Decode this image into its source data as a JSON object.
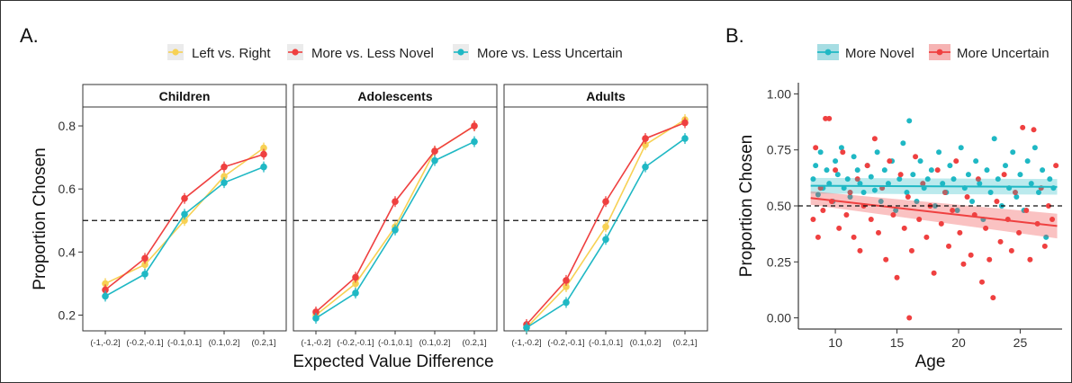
{
  "panel_a": {
    "label": "A.",
    "legend": [
      {
        "name": "Left vs. Right",
        "color": "#f7d154"
      },
      {
        "name": "More vs. Less Novel",
        "color": "#ef4040"
      },
      {
        "name": "More vs. Less Uncertain",
        "color": "#1fb8c4"
      }
    ]
  },
  "panel_b": {
    "label": "B.",
    "legend": [
      {
        "name": "More Novel",
        "color": "#1fb8c4"
      },
      {
        "name": "More Uncertain",
        "color": "#ef4040"
      }
    ]
  },
  "chart_data": [
    {
      "type": "line",
      "facets": [
        "Children",
        "Adolescents",
        "Adults"
      ],
      "categories": [
        "(-1,-0.2]",
        "(-0.2,-0.1]",
        "(-0.1,0.1]",
        "(0.1,0.2]",
        "(0.2,1]"
      ],
      "xlabel": "Expected Value Difference",
      "ylabel": "Proportion Chosen",
      "ylim": [
        0.15,
        0.86
      ],
      "yticks": [
        0.2,
        0.4,
        0.6,
        0.8
      ],
      "reference_line": 0.5,
      "series": [
        {
          "name": "Left vs. Right",
          "color": "#f7d154",
          "values": [
            [
              0.3,
              0.36,
              0.5,
              0.64,
              0.73
            ],
            [
              0.2,
              0.3,
              0.48,
              0.72,
              0.8
            ],
            [
              0.16,
              0.29,
              0.48,
              0.74,
              0.82
            ]
          ]
        },
        {
          "name": "More vs. Less Novel",
          "color": "#ef4040",
          "values": [
            [
              0.28,
              0.38,
              0.57,
              0.67,
              0.71
            ],
            [
              0.21,
              0.32,
              0.56,
              0.72,
              0.8
            ],
            [
              0.17,
              0.31,
              0.56,
              0.76,
              0.81
            ]
          ]
        },
        {
          "name": "More vs. Less Uncertain",
          "color": "#1fb8c4",
          "values": [
            [
              0.26,
              0.33,
              0.52,
              0.62,
              0.67
            ],
            [
              0.19,
              0.27,
              0.47,
              0.69,
              0.75
            ],
            [
              0.16,
              0.24,
              0.44,
              0.67,
              0.76
            ]
          ]
        }
      ],
      "grid": false,
      "legend_position": "top"
    },
    {
      "type": "scatter",
      "xlabel": "Age",
      "ylabel": "Proportion Chosen",
      "xlim": [
        7,
        28.4
      ],
      "ylim": [
        -0.05,
        1.05
      ],
      "xticks": [
        10,
        15,
        20,
        25
      ],
      "yticks": [
        0.0,
        0.25,
        0.5,
        0.75,
        1.0
      ],
      "ytick_labels": [
        "0.00",
        "0.25",
        "0.50",
        "0.75",
        "1.00"
      ],
      "reference_line": 0.5,
      "series": [
        {
          "name": "More Novel",
          "color": "#1fb8c4",
          "trend": {
            "x": [
              8,
              28
            ],
            "y": [
              0.59,
              0.585
            ],
            "band": 0.035
          },
          "points": [
            [
              8.2,
              0.62
            ],
            [
              8.4,
              0.68
            ],
            [
              8.6,
              0.55
            ],
            [
              8.8,
              0.74
            ],
            [
              9.0,
              0.58
            ],
            [
              9.3,
              0.66
            ],
            [
              9.5,
              0.6
            ],
            [
              9.8,
              0.52
            ],
            [
              10.0,
              0.7
            ],
            [
              10.2,
              0.64
            ],
            [
              10.5,
              0.76
            ],
            [
              10.7,
              0.58
            ],
            [
              11.0,
              0.62
            ],
            [
              11.2,
              0.54
            ],
            [
              11.5,
              0.72
            ],
            [
              11.8,
              0.66
            ],
            [
              12.0,
              0.6
            ],
            [
              12.3,
              0.56
            ],
            [
              12.6,
              0.68
            ],
            [
              12.9,
              0.63
            ],
            [
              13.2,
              0.57
            ],
            [
              13.4,
              0.74
            ],
            [
              13.7,
              0.52
            ],
            [
              14.0,
              0.66
            ],
            [
              14.3,
              0.6
            ],
            [
              14.6,
              0.7
            ],
            [
              14.9,
              0.48
            ],
            [
              15.2,
              0.62
            ],
            [
              15.5,
              0.78
            ],
            [
              15.8,
              0.56
            ],
            [
              16.0,
              0.88
            ],
            [
              16.3,
              0.64
            ],
            [
              16.6,
              0.52
            ],
            [
              16.9,
              0.7
            ],
            [
              17.2,
              0.58
            ],
            [
              17.5,
              0.62
            ],
            [
              17.8,
              0.66
            ],
            [
              18.1,
              0.5
            ],
            [
              18.4,
              0.74
            ],
            [
              18.7,
              0.6
            ],
            [
              19.0,
              0.56
            ],
            [
              19.3,
              0.68
            ],
            [
              19.6,
              0.62
            ],
            [
              19.9,
              0.48
            ],
            [
              20.2,
              0.76
            ],
            [
              20.5,
              0.58
            ],
            [
              20.8,
              0.64
            ],
            [
              21.1,
              0.52
            ],
            [
              21.4,
              0.7
            ],
            [
              21.7,
              0.6
            ],
            [
              22.0,
              0.44
            ],
            [
              22.3,
              0.66
            ],
            [
              22.6,
              0.56
            ],
            [
              22.9,
              0.8
            ],
            [
              23.2,
              0.62
            ],
            [
              23.5,
              0.5
            ],
            [
              23.8,
              0.68
            ],
            [
              24.1,
              0.58
            ],
            [
              24.4,
              0.74
            ],
            [
              24.7,
              0.54
            ],
            [
              25.0,
              0.64
            ],
            [
              25.3,
              0.48
            ],
            [
              25.6,
              0.7
            ],
            [
              25.9,
              0.6
            ],
            [
              26.2,
              0.76
            ],
            [
              26.5,
              0.56
            ],
            [
              26.8,
              0.66
            ],
            [
              27.1,
              0.36
            ],
            [
              27.4,
              0.62
            ],
            [
              27.7,
              0.58
            ]
          ]
        },
        {
          "name": "More Uncertain",
          "color": "#ef4040",
          "trend": {
            "x": [
              8,
              28
            ],
            "y": [
              0.535,
              0.41
            ],
            "band_start": 0.03,
            "band_end": 0.055
          },
          "points": [
            [
              8.2,
              0.44
            ],
            [
              8.4,
              0.76
            ],
            [
              8.6,
              0.36
            ],
            [
              8.8,
              0.58
            ],
            [
              9.0,
              0.48
            ],
            [
              9.2,
              0.89
            ],
            [
              9.5,
              0.89
            ],
            [
              9.7,
              0.52
            ],
            [
              10.0,
              0.66
            ],
            [
              10.3,
              0.4
            ],
            [
              10.6,
              0.74
            ],
            [
              10.9,
              0.46
            ],
            [
              11.2,
              0.56
            ],
            [
              11.5,
              0.36
            ],
            [
              11.8,
              0.62
            ],
            [
              12.0,
              0.3
            ],
            [
              12.3,
              0.5
            ],
            [
              12.6,
              0.68
            ],
            [
              12.9,
              0.44
            ],
            [
              13.2,
              0.8
            ],
            [
              13.5,
              0.38
            ],
            [
              13.8,
              0.58
            ],
            [
              14.1,
              0.26
            ],
            [
              14.4,
              0.7
            ],
            [
              14.7,
              0.46
            ],
            [
              15.0,
              0.18
            ],
            [
              15.3,
              0.64
            ],
            [
              15.6,
              0.4
            ],
            [
              15.9,
              0.54
            ],
            [
              16.2,
              0.3
            ],
            [
              16.0,
              0.0
            ],
            [
              16.5,
              0.72
            ],
            [
              16.8,
              0.44
            ],
            [
              17.1,
              0.6
            ],
            [
              17.4,
              0.36
            ],
            [
              17.7,
              0.5
            ],
            [
              18.0,
              0.2
            ],
            [
              18.3,
              0.66
            ],
            [
              18.6,
              0.42
            ],
            [
              18.9,
              0.56
            ],
            [
              19.2,
              0.32
            ],
            [
              19.5,
              0.48
            ],
            [
              19.8,
              0.7
            ],
            [
              20.1,
              0.38
            ],
            [
              20.4,
              0.24
            ],
            [
              20.7,
              0.54
            ],
            [
              21.0,
              0.28
            ],
            [
              21.3,
              0.46
            ],
            [
              21.6,
              0.62
            ],
            [
              21.9,
              0.16
            ],
            [
              22.2,
              0.4
            ],
            [
              22.5,
              0.26
            ],
            [
              22.8,
              0.09
            ],
            [
              23.1,
              0.52
            ],
            [
              23.4,
              0.34
            ],
            [
              23.7,
              0.64
            ],
            [
              24.0,
              0.44
            ],
            [
              24.3,
              0.3
            ],
            [
              24.6,
              0.56
            ],
            [
              24.9,
              0.38
            ],
            [
              25.2,
              0.85
            ],
            [
              25.5,
              0.48
            ],
            [
              25.8,
              0.26
            ],
            [
              26.1,
              0.84
            ],
            [
              26.4,
              0.42
            ],
            [
              26.7,
              0.58
            ],
            [
              27.0,
              0.32
            ],
            [
              27.3,
              0.5
            ],
            [
              27.6,
              0.44
            ],
            [
              27.9,
              0.68
            ]
          ]
        }
      ],
      "grid": false,
      "legend_position": "top"
    }
  ]
}
